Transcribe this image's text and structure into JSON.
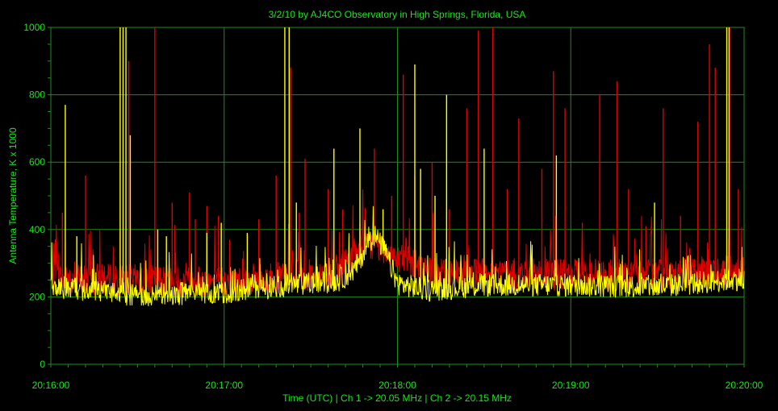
{
  "colors": {
    "background": "#000000",
    "grid": "#1e8c1e",
    "axis_text": "#19e619",
    "ch1": "#e00000",
    "ch2": "#ffff00"
  },
  "chart_data": {
    "type": "line",
    "title": "3/2/10  by  AJ4CO Observatory  in  High Springs, Florida, USA",
    "xlabel": "Time (UTC)  |  Ch 1 -> 20.05 MHz  |  Ch 2 -> 20.15 MHz",
    "ylabel": "Antenna Temperature, K x 1000",
    "ylim": [
      0,
      1000
    ],
    "y_ticks": [
      "0",
      "200",
      "400",
      "600",
      "800",
      "1000"
    ],
    "x_ticks": [
      "20:16:00",
      "20:17:00",
      "20:18:00",
      "20:19:00",
      "20:20:00"
    ],
    "x_range_seconds": [
      0,
      240
    ],
    "grid": true,
    "series": [
      {
        "channel": "Ch 1",
        "color": "#e00000",
        "baseline_x": [
          0,
          30,
          60,
          90,
          100,
          105,
          112,
          120,
          130,
          150,
          180,
          210,
          240
        ],
        "baseline_y": [
          255,
          250,
          245,
          265,
          280,
          330,
          360,
          320,
          275,
          270,
          265,
          265,
          280
        ],
        "spikes_x": [
          4,
          12,
          24,
          27,
          36,
          42,
          48,
          50,
          54,
          58,
          72,
          78,
          83,
          86,
          88,
          96,
          101,
          107,
          112,
          118,
          122,
          126,
          132,
          138,
          144,
          148,
          153,
          158,
          162,
          170,
          174,
          178,
          184,
          190,
          196,
          200,
          206,
          212,
          218,
          224,
          228,
          230,
          235,
          238
        ],
        "spikes_y": [
          450,
          560,
          390,
          900,
          1000,
          480,
          510,
          430,
          470,
          440,
          430,
          560,
          880,
          450,
          610,
          520,
          460,
          420,
          640,
          500,
          860,
          560,
          600,
          460,
          760,
          990,
          1000,
          520,
          730,
          580,
          870,
          760,
          420,
          800,
          840,
          520,
          410,
          760,
          440,
          720,
          950,
          880,
          1000,
          520
        ]
      },
      {
        "channel": "Ch 2",
        "color": "#ffff00",
        "baseline_x": [
          0,
          30,
          60,
          90,
          100,
          105,
          110,
          112,
          116,
          120,
          130,
          150,
          180,
          210,
          240
        ],
        "baseline_y": [
          230,
          205,
          215,
          240,
          250,
          280,
          360,
          385,
          330,
          240,
          220,
          235,
          235,
          230,
          255
        ],
        "spikes_x": [
          5,
          9,
          24,
          25,
          26,
          27.5,
          37,
          40,
          54,
          59,
          68,
          81,
          82.5,
          85,
          98,
          107,
          115,
          126,
          128,
          133,
          137,
          150,
          175,
          209,
          234,
          234.8
        ],
        "spikes_y": [
          770,
          380,
          1000,
          1000,
          1000,
          680,
          400,
          380,
          390,
          420,
          390,
          1000,
          1000,
          480,
          640,
          700,
          460,
          890,
          580,
          500,
          800,
          640,
          620,
          480,
          1000,
          1000
        ]
      }
    ]
  }
}
